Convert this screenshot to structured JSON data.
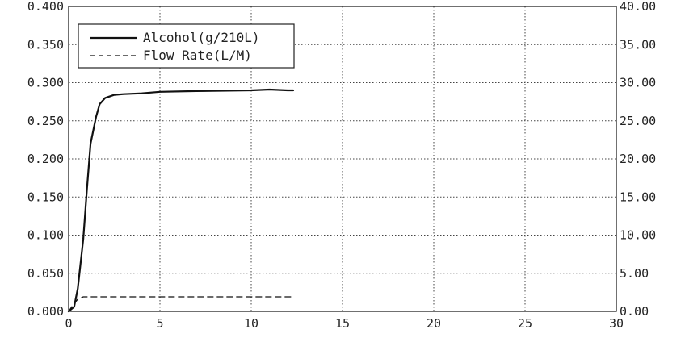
{
  "chart_data": {
    "type": "line",
    "title": "",
    "xlabel": "",
    "ylabel": "",
    "y2label": "",
    "xlim": [
      0,
      30
    ],
    "ylim": [
      0,
      0.4
    ],
    "y2lim": [
      0,
      40
    ],
    "x_ticks": [
      "0",
      "5",
      "10",
      "15",
      "20",
      "25",
      "30"
    ],
    "y_ticks": [
      "0.000",
      "0.050",
      "0.100",
      "0.150",
      "0.200",
      "0.250",
      "0.300",
      "0.350",
      "0.400"
    ],
    "y2_ticks": [
      "0.00",
      "5.00",
      "10.00",
      "15.00",
      "20.00",
      "25.00",
      "30.00",
      "35.00",
      "40.00"
    ],
    "grid": true,
    "legend_position": "top-left",
    "series": [
      {
        "name": "Alcohol(g/210L)",
        "axis": "left",
        "style": "solid",
        "color": "#111111",
        "x": [
          0.0,
          0.3,
          0.5,
          0.8,
          1.0,
          1.2,
          1.5,
          1.7,
          2.0,
          2.5,
          3.0,
          4.0,
          5.0,
          7.0,
          10.0,
          11.0,
          12.0,
          12.3
        ],
        "y": [
          0.0,
          0.006,
          0.03,
          0.095,
          0.16,
          0.22,
          0.255,
          0.272,
          0.28,
          0.284,
          0.285,
          0.286,
          0.288,
          0.289,
          0.29,
          0.291,
          0.29,
          0.29
        ]
      },
      {
        "name": "Flow Rate(L/M)",
        "axis": "right",
        "style": "dashed",
        "color": "#111111",
        "x": [
          0.0,
          0.2,
          0.5,
          0.8,
          1.0,
          12.3
        ],
        "y": [
          0.0,
          0.7,
          1.6,
          1.9,
          1.9,
          1.9
        ]
      }
    ]
  }
}
